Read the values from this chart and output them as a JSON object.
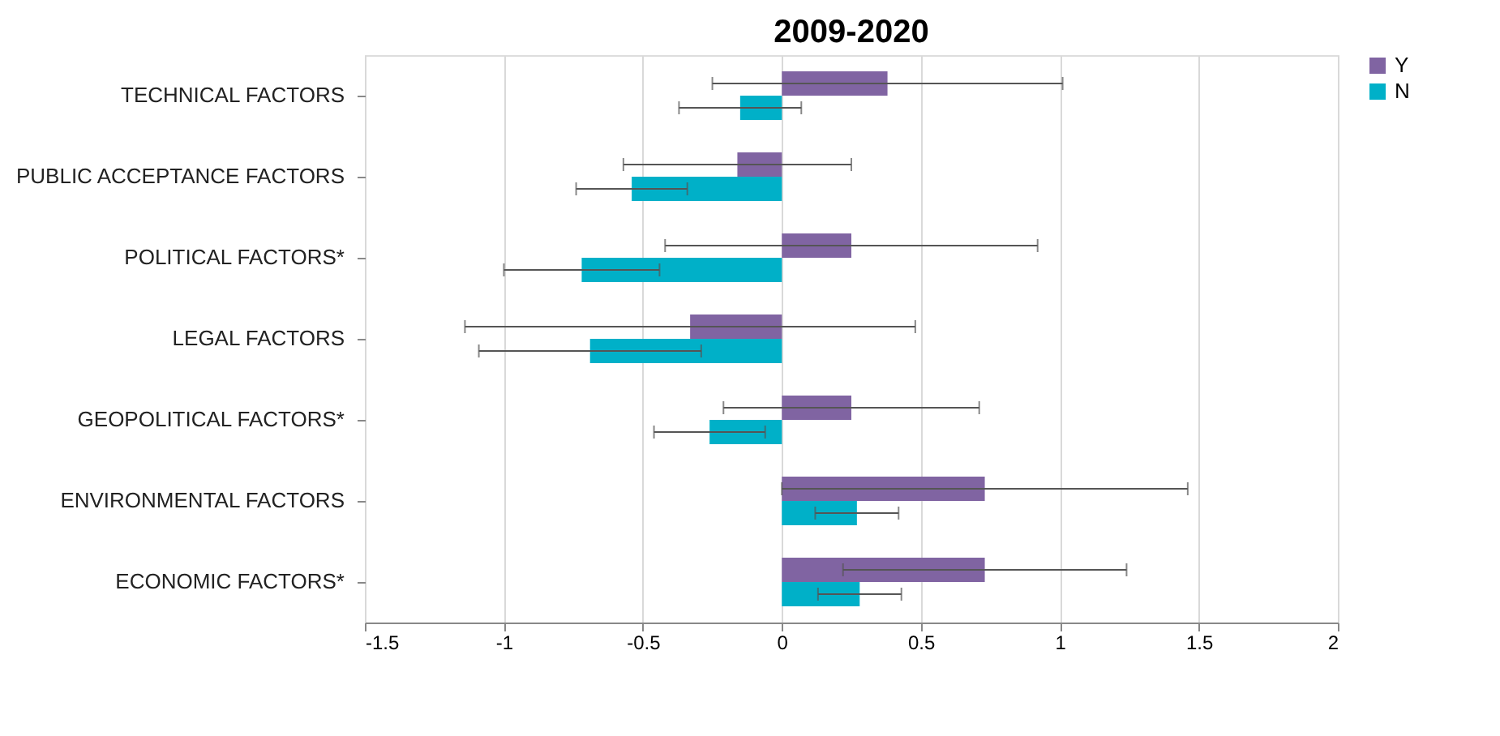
{
  "chart_data": {
    "type": "bar",
    "title": "2009-2020",
    "orientation": "horizontal",
    "categories": [
      "TECHNICAL FACTORS",
      "PUBLIC ACCEPTANCE FACTORS",
      "POLITICAL FACTORS*",
      "LEGAL FACTORS",
      "GEOPOLITICAL FACTORS*",
      "ENVIRONMENTAL FACTORS",
      "ECONOMIC FACTORS*"
    ],
    "series": [
      {
        "name": "Y",
        "color": "#8064a2",
        "values": [
          0.38,
          -0.16,
          0.25,
          -0.33,
          0.25,
          0.73,
          0.73
        ],
        "errors": [
          0.63,
          0.41,
          0.67,
          0.81,
          0.46,
          0.73,
          0.51
        ]
      },
      {
        "name": "N",
        "color": "#00b0c8",
        "values": [
          -0.15,
          -0.54,
          -0.72,
          -0.69,
          -0.26,
          0.27,
          0.28
        ],
        "errors": [
          0.22,
          0.2,
          0.28,
          0.4,
          0.2,
          0.15,
          0.15
        ]
      }
    ],
    "xlim": [
      -1.5,
      2
    ],
    "xticks": [
      -1.5,
      -1,
      -0.5,
      0,
      0.5,
      1,
      1.5,
      2
    ],
    "grid": "x",
    "legend": "right"
  }
}
